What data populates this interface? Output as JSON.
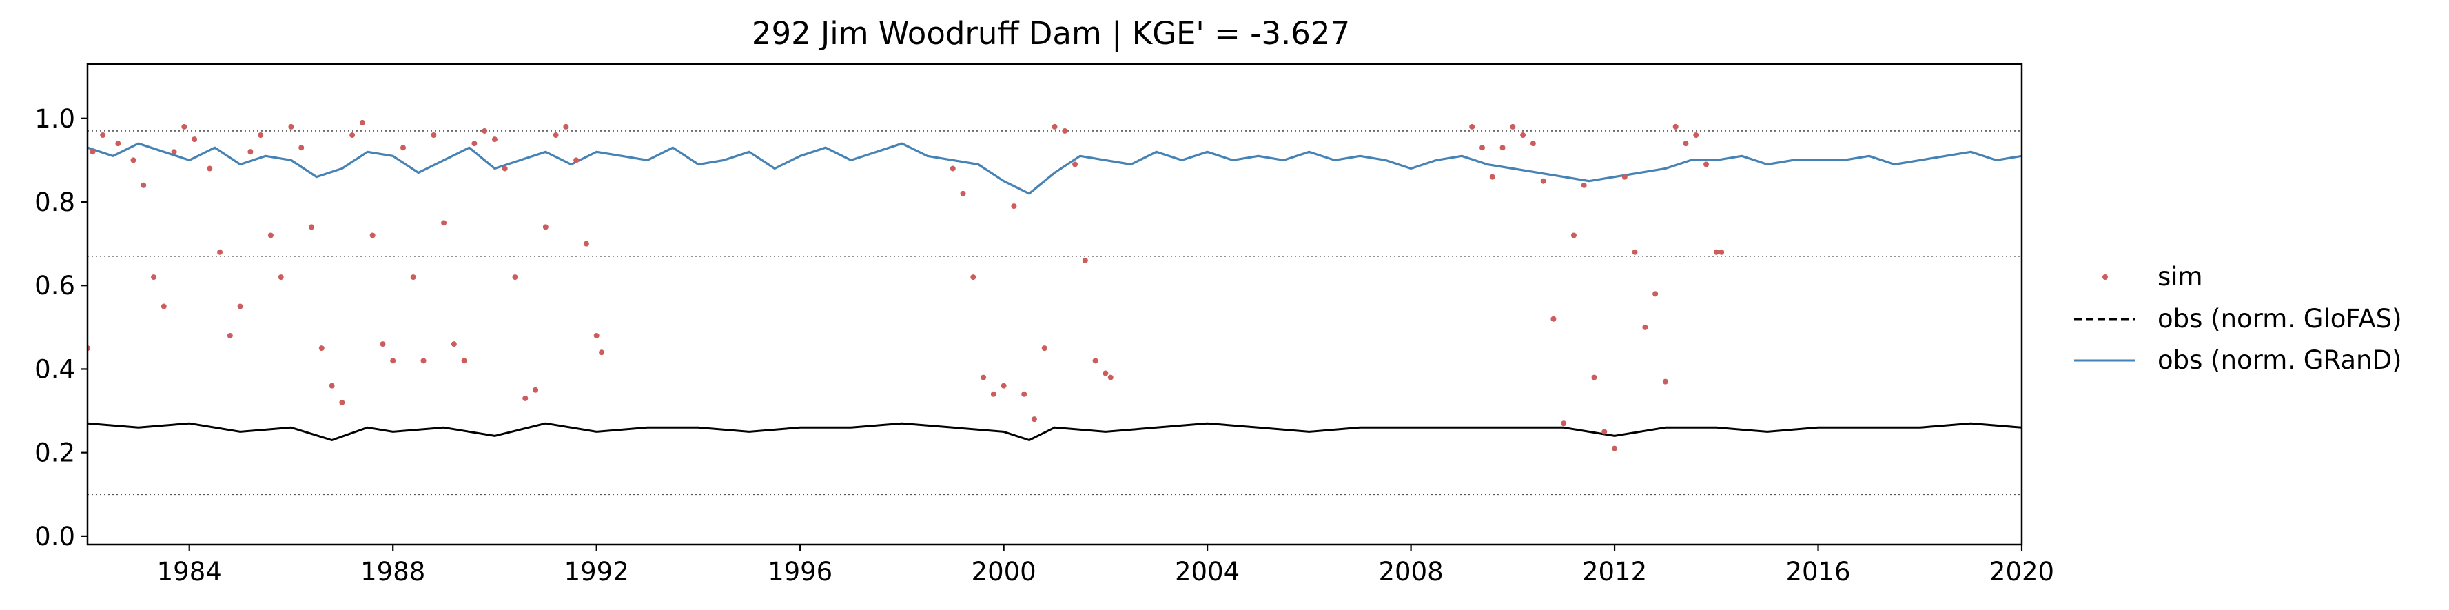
{
  "chart_data": {
    "type": "line",
    "title": "292  Jim Woodruff Dam | KGE' = -3.627",
    "xlabel": "",
    "ylabel": "",
    "xlim": [
      1982.0,
      2020.0
    ],
    "ylim": [
      -0.02,
      1.13
    ],
    "x_ticks": [
      1984,
      1988,
      1992,
      1996,
      2000,
      2004,
      2008,
      2012,
      2016,
      2020
    ],
    "y_ticks": [
      0.0,
      0.2,
      0.4,
      0.6,
      0.8,
      1.0
    ],
    "x_tick_labels": [
      "1984",
      "1988",
      "1992",
      "1996",
      "2000",
      "2004",
      "2008",
      "2012",
      "2016",
      "2020"
    ],
    "y_tick_labels": [
      "0.0",
      "0.2",
      "0.4",
      "0.6",
      "0.8",
      "1.0"
    ],
    "reference_lines": [
      0.97,
      0.67,
      0.1
    ],
    "grid": false,
    "legend_position": "right",
    "series": [
      {
        "name": "sim",
        "style": "points",
        "color": "#cd5c5c",
        "x": [
          1982.0,
          1982.1,
          1982.3,
          1982.6,
          1982.9,
          1983.1,
          1983.3,
          1983.5,
          1983.7,
          1983.9,
          1984.1,
          1984.4,
          1984.6,
          1984.8,
          1985.0,
          1985.2,
          1985.4,
          1985.6,
          1985.8,
          1986.0,
          1986.2,
          1986.4,
          1986.6,
          1986.8,
          1987.0,
          1987.2,
          1987.4,
          1987.6,
          1987.8,
          1988.0,
          1988.2,
          1988.4,
          1988.6,
          1988.8,
          1989.0,
          1989.2,
          1989.4,
          1989.6,
          1989.8,
          1990.0,
          1990.2,
          1990.4,
          1990.6,
          1990.8,
          1991.0,
          1991.2,
          1991.4,
          1991.6,
          1991.8,
          1992.0,
          1992.1,
          1999.0,
          1999.2,
          1999.4,
          1999.6,
          1999.8,
          2000.0,
          2000.2,
          2000.4,
          2000.6,
          2000.8,
          2001.0,
          2001.2,
          2001.4,
          2001.6,
          2001.8,
          2002.0,
          2002.1,
          2009.2,
          2009.4,
          2009.6,
          2009.8,
          2010.0,
          2010.2,
          2010.4,
          2010.6,
          2010.8,
          2011.0,
          2011.2,
          2011.4,
          2011.6,
          2011.8,
          2012.0,
          2012.2,
          2012.4,
          2012.6,
          2012.8,
          2013.0,
          2013.2,
          2013.4,
          2013.6,
          2013.8,
          2014.0,
          2014.1
        ],
        "y": [
          0.45,
          0.92,
          0.96,
          0.94,
          0.9,
          0.84,
          0.62,
          0.55,
          0.92,
          0.98,
          0.95,
          0.88,
          0.68,
          0.48,
          0.55,
          0.92,
          0.96,
          0.72,
          0.62,
          0.98,
          0.93,
          0.74,
          0.45,
          0.36,
          0.32,
          0.96,
          0.99,
          0.72,
          0.46,
          0.42,
          0.93,
          0.62,
          0.42,
          0.96,
          0.75,
          0.46,
          0.42,
          0.94,
          0.97,
          0.95,
          0.88,
          0.62,
          0.33,
          0.35,
          0.74,
          0.96,
          0.98,
          0.9,
          0.7,
          0.48,
          0.44,
          0.88,
          0.82,
          0.62,
          0.38,
          0.34,
          0.36,
          0.79,
          0.34,
          0.28,
          0.45,
          0.98,
          0.97,
          0.89,
          0.66,
          0.42,
          0.39,
          0.38,
          0.98,
          0.93,
          0.86,
          0.93,
          0.98,
          0.96,
          0.94,
          0.85,
          0.52,
          0.27,
          0.72,
          0.84,
          0.38,
          0.25,
          0.21,
          0.86,
          0.68,
          0.5,
          0.58,
          0.37,
          0.98,
          0.94,
          0.96,
          0.89,
          0.68,
          0.68
        ]
      },
      {
        "name": "obs (norm. GloFAS)",
        "style": "dashed",
        "color": "#000000",
        "x": [
          1982.0,
          1983.0,
          1984.0,
          1985.0,
          1986.0,
          1986.8,
          1987.5,
          1988.0,
          1989.0,
          1990.0,
          1991.0,
          1992.0,
          1993.0,
          1994.0,
          1995.0,
          1996.0,
          1997.0,
          1998.0,
          1999.0,
          2000.0,
          2000.5,
          2001.0,
          2002.0,
          2003.0,
          2004.0,
          2005.0,
          2006.0,
          2007.0,
          2008.0,
          2009.0,
          2010.0,
          2011.0,
          2012.0,
          2013.0,
          2014.0,
          2015.0,
          2016.0,
          2017.0,
          2018.0,
          2019.0,
          2020.0
        ],
        "y": [
          0.27,
          0.26,
          0.27,
          0.25,
          0.26,
          0.23,
          0.26,
          0.25,
          0.26,
          0.24,
          0.27,
          0.25,
          0.26,
          0.26,
          0.25,
          0.26,
          0.26,
          0.27,
          0.26,
          0.25,
          0.23,
          0.26,
          0.25,
          0.26,
          0.27,
          0.26,
          0.25,
          0.26,
          0.26,
          0.26,
          0.26,
          0.26,
          0.24,
          0.26,
          0.26,
          0.25,
          0.26,
          0.26,
          0.26,
          0.27,
          0.26
        ]
      },
      {
        "name": "obs (norm. GRanD)",
        "style": "solid",
        "color": "#4682b4",
        "x": [
          1982.0,
          1982.5,
          1983.0,
          1983.5,
          1984.0,
          1984.5,
          1985.0,
          1985.5,
          1986.0,
          1986.5,
          1987.0,
          1987.5,
          1988.0,
          1988.5,
          1989.0,
          1989.5,
          1990.0,
          1990.5,
          1991.0,
          1991.5,
          1992.0,
          1992.5,
          1993.0,
          1993.5,
          1994.0,
          1994.5,
          1995.0,
          1995.5,
          1996.0,
          1996.5,
          1997.0,
          1997.5,
          1998.0,
          1998.5,
          1999.0,
          1999.5,
          2000.0,
          2000.5,
          2001.0,
          2001.5,
          2002.0,
          2002.5,
          2003.0,
          2003.5,
          2004.0,
          2004.5,
          2005.0,
          2005.5,
          2006.0,
          2006.5,
          2007.0,
          2007.5,
          2008.0,
          2008.5,
          2009.0,
          2009.5,
          2010.0,
          2010.5,
          2011.0,
          2011.5,
          2012.0,
          2012.5,
          2013.0,
          2013.5,
          2014.0,
          2014.5,
          2015.0,
          2015.5,
          2016.0,
          2016.5,
          2017.0,
          2017.5,
          2018.0,
          2018.5,
          2019.0,
          2019.5,
          2020.0
        ],
        "y": [
          0.93,
          0.91,
          0.94,
          0.92,
          0.9,
          0.93,
          0.89,
          0.91,
          0.9,
          0.86,
          0.88,
          0.92,
          0.91,
          0.87,
          0.9,
          0.93,
          0.88,
          0.9,
          0.92,
          0.89,
          0.92,
          0.91,
          0.9,
          0.93,
          0.89,
          0.9,
          0.92,
          0.88,
          0.91,
          0.93,
          0.9,
          0.92,
          0.94,
          0.91,
          0.9,
          0.89,
          0.85,
          0.82,
          0.87,
          0.91,
          0.9,
          0.89,
          0.92,
          0.9,
          0.92,
          0.9,
          0.91,
          0.9,
          0.92,
          0.9,
          0.91,
          0.9,
          0.88,
          0.9,
          0.91,
          0.89,
          0.88,
          0.87,
          0.86,
          0.85,
          0.86,
          0.87,
          0.88,
          0.9,
          0.9,
          0.91,
          0.89,
          0.9,
          0.9,
          0.9,
          0.91,
          0.89,
          0.9,
          0.91,
          0.92,
          0.9,
          0.91
        ]
      }
    ]
  }
}
